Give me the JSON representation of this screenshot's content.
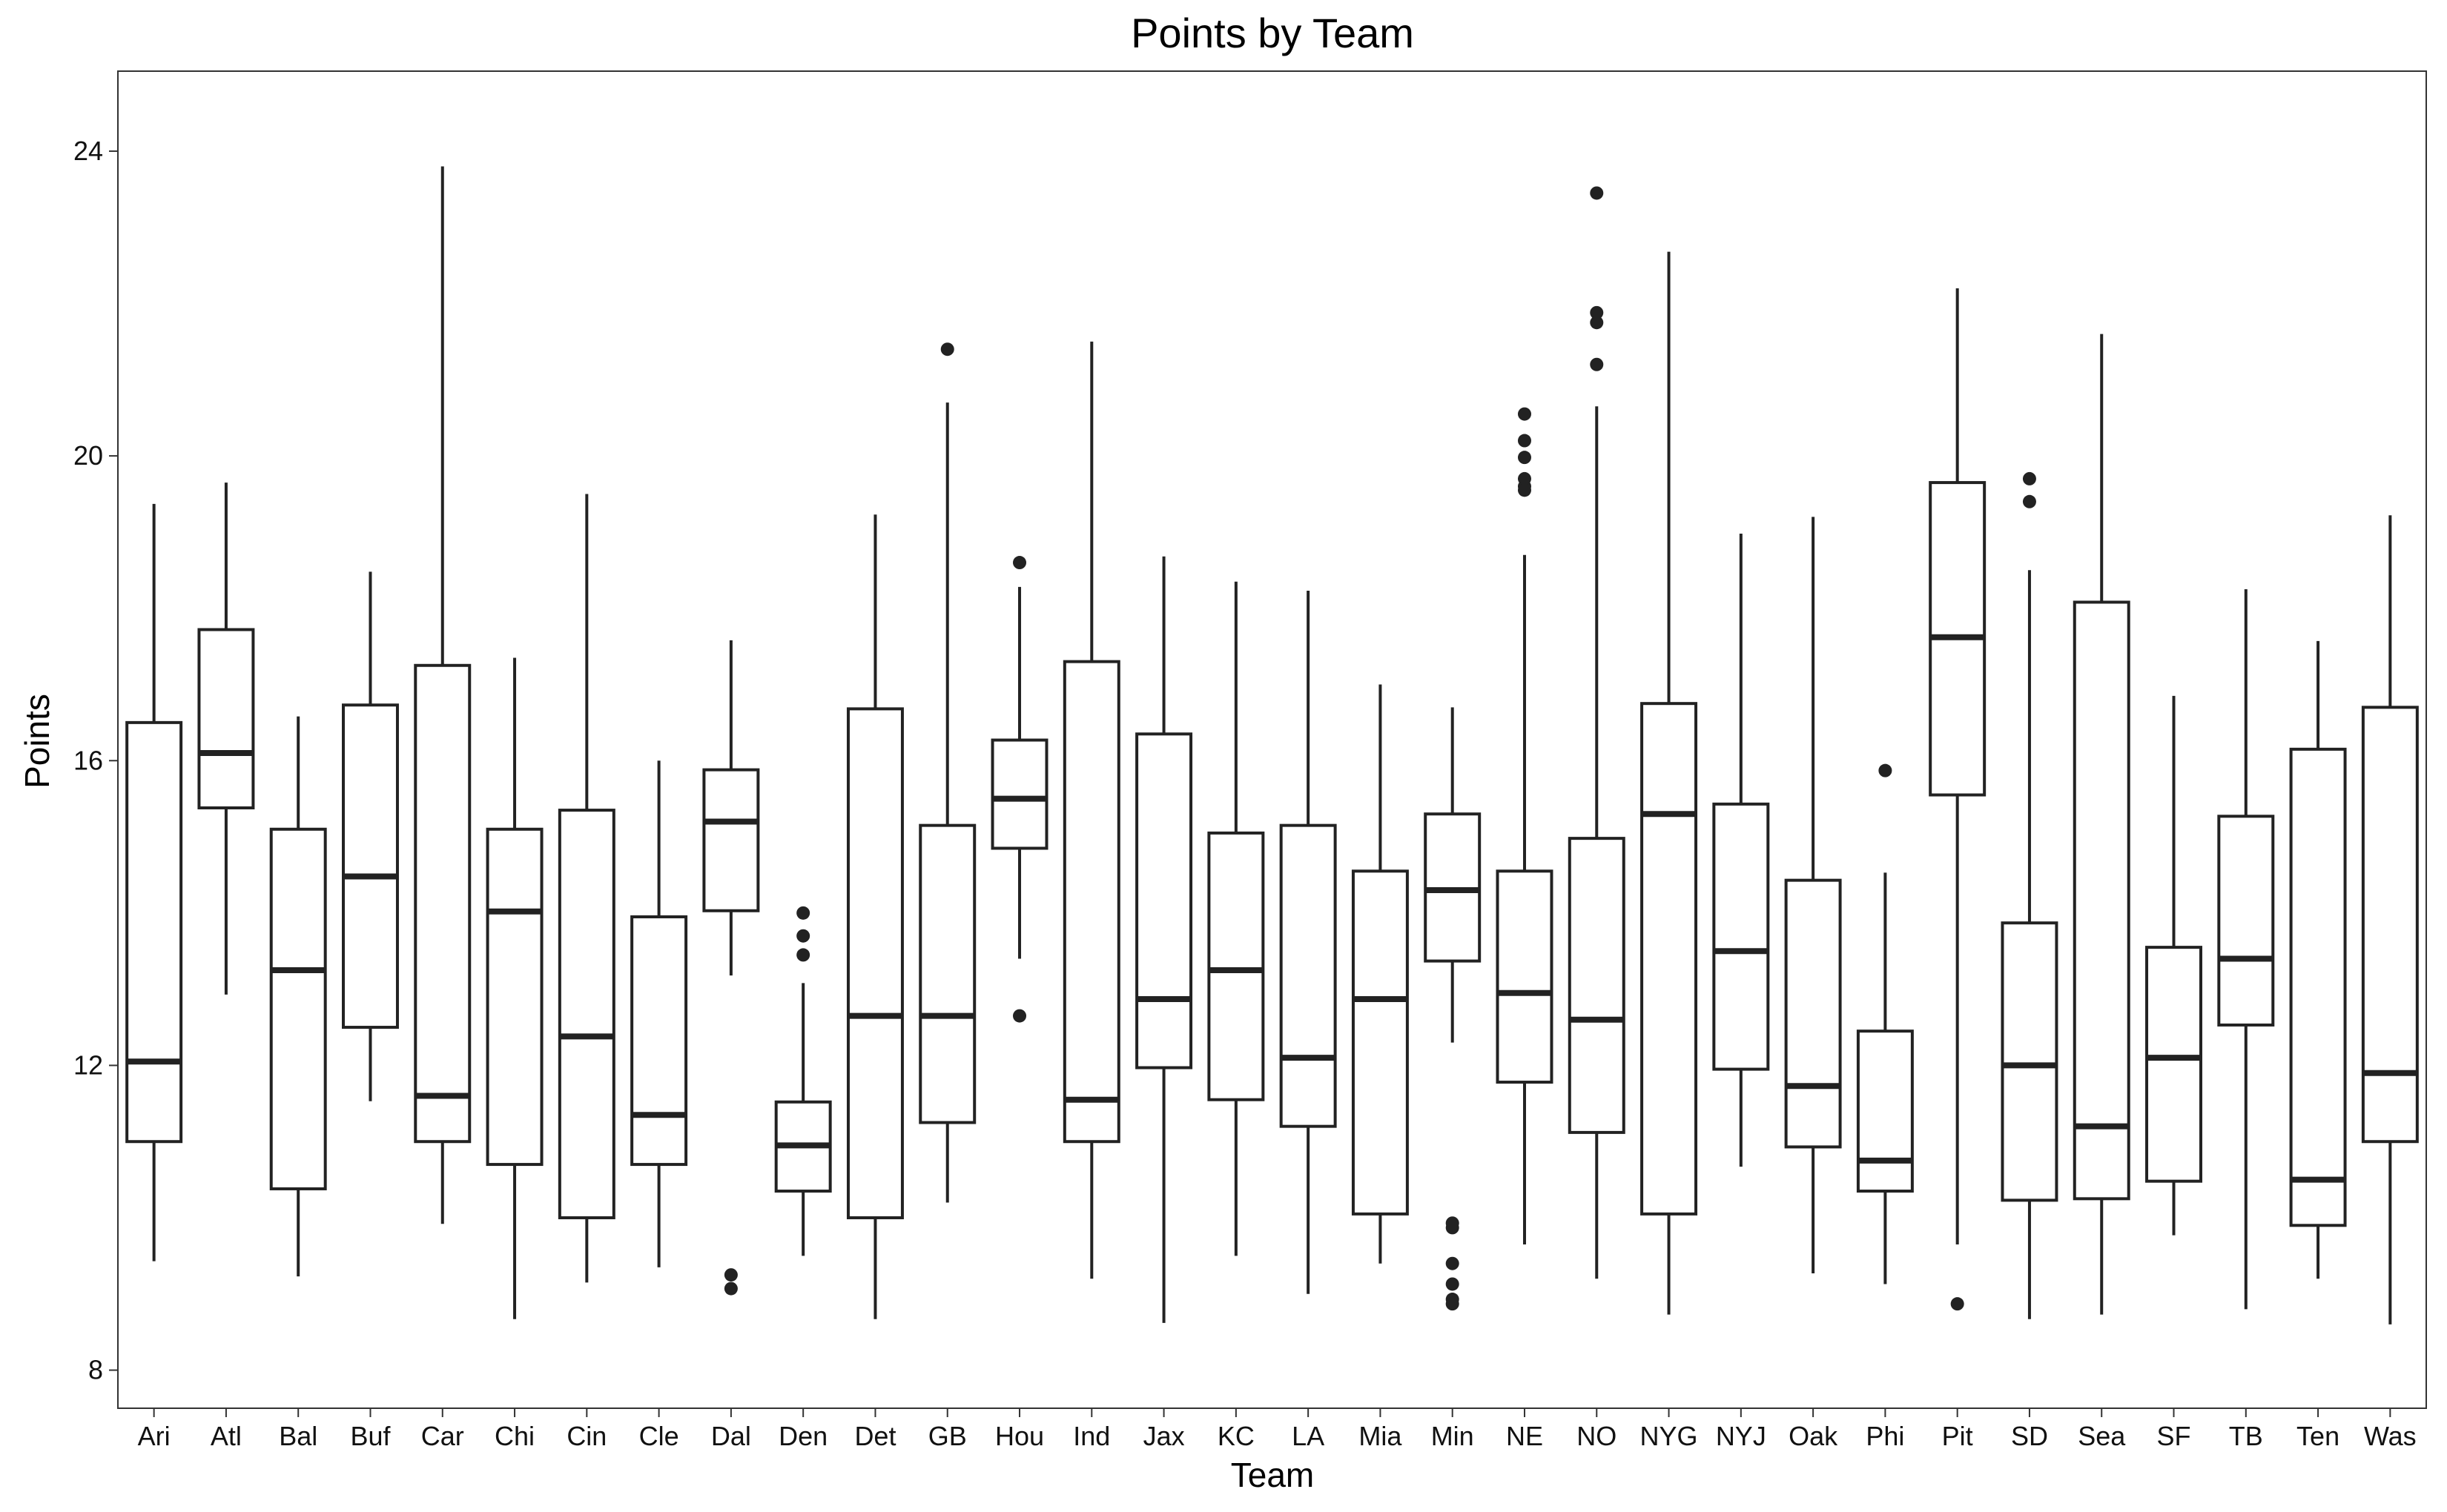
{
  "chart_data": {
    "type": "box",
    "title": "Points by Team",
    "xlabel": "Team",
    "ylabel": "Points",
    "ylim": [
      7.5,
      25.05
    ],
    "yticks": [
      8,
      12,
      16,
      20,
      24
    ],
    "grid": false,
    "categories": [
      "Ari",
      "Atl",
      "Bal",
      "Buf",
      "Car",
      "Chi",
      "Cin",
      "Cle",
      "Dal",
      "Den",
      "Det",
      "GB",
      "Hou",
      "Ind",
      "Jax",
      "KC",
      "LA",
      "Mia",
      "Min",
      "NE",
      "NO",
      "NYG",
      "NYJ",
      "Oak",
      "Phi",
      "Pit",
      "SD",
      "Sea",
      "SF",
      "TB",
      "Ten",
      "Was"
    ],
    "boxes": [
      {
        "min": 9.43,
        "q1": 11.0,
        "median": 12.05,
        "q3": 16.5,
        "max": 19.37,
        "outliers": []
      },
      {
        "min": 12.93,
        "q1": 15.38,
        "median": 16.1,
        "q3": 17.72,
        "max": 19.65,
        "outliers": []
      },
      {
        "min": 9.23,
        "q1": 10.38,
        "median": 13.25,
        "q3": 15.1,
        "max": 16.58,
        "outliers": []
      },
      {
        "min": 11.53,
        "q1": 12.5,
        "median": 14.48,
        "q3": 16.73,
        "max": 18.48,
        "outliers": []
      },
      {
        "min": 9.92,
        "q1": 11.0,
        "median": 11.6,
        "q3": 17.25,
        "max": 23.8,
        "outliers": []
      },
      {
        "min": 8.67,
        "q1": 10.7,
        "median": 14.02,
        "q3": 15.1,
        "max": 17.35,
        "outliers": []
      },
      {
        "min": 9.15,
        "q1": 10.0,
        "median": 12.38,
        "q3": 15.35,
        "max": 19.5,
        "outliers": []
      },
      {
        "min": 9.35,
        "q1": 10.7,
        "median": 11.35,
        "q3": 13.95,
        "max": 16.0,
        "outliers": []
      },
      {
        "min": 13.18,
        "q1": 14.03,
        "median": 15.2,
        "q3": 15.88,
        "max": 17.58,
        "outliers": [
          9.25,
          9.07
        ]
      },
      {
        "min": 9.5,
        "q1": 10.35,
        "median": 10.95,
        "q3": 11.52,
        "max": 13.08,
        "outliers": [
          14.0,
          13.7,
          13.45
        ]
      },
      {
        "min": 8.67,
        "q1": 10.0,
        "median": 12.65,
        "q3": 16.68,
        "max": 19.23,
        "outliers": []
      },
      {
        "min": 10.2,
        "q1": 11.25,
        "median": 12.65,
        "q3": 15.15,
        "max": 20.7,
        "outliers": [
          21.4
        ]
      },
      {
        "min": 13.4,
        "q1": 14.85,
        "median": 15.5,
        "q3": 16.27,
        "max": 18.28,
        "outliers": [
          18.6,
          12.65
        ]
      },
      {
        "min": 9.2,
        "q1": 11.0,
        "median": 11.55,
        "q3": 17.3,
        "max": 21.5,
        "outliers": []
      },
      {
        "min": 8.62,
        "q1": 11.97,
        "median": 12.87,
        "q3": 16.35,
        "max": 18.68,
        "outliers": []
      },
      {
        "min": 9.5,
        "q1": 11.55,
        "median": 13.25,
        "q3": 15.05,
        "max": 18.35,
        "outliers": []
      },
      {
        "min": 9.0,
        "q1": 11.2,
        "median": 12.1,
        "q3": 15.15,
        "max": 18.23,
        "outliers": []
      },
      {
        "min": 9.4,
        "q1": 10.05,
        "median": 12.87,
        "q3": 14.55,
        "max": 17.0,
        "outliers": []
      },
      {
        "min": 12.3,
        "q1": 13.37,
        "median": 14.3,
        "q3": 15.3,
        "max": 16.7,
        "outliers": [
          9.93,
          9.87,
          9.4,
          9.13,
          8.93,
          8.87
        ]
      },
      {
        "min": 9.65,
        "q1": 11.78,
        "median": 12.95,
        "q3": 14.55,
        "max": 18.7,
        "outliers": [
          20.55,
          20.2,
          19.98,
          19.7,
          19.6,
          19.55
        ]
      },
      {
        "min": 9.2,
        "q1": 11.12,
        "median": 12.6,
        "q3": 14.98,
        "max": 20.65,
        "outliers": [
          23.45,
          21.88,
          21.75,
          21.2
        ]
      },
      {
        "min": 8.73,
        "q1": 10.05,
        "median": 15.3,
        "q3": 16.75,
        "max": 22.68,
        "outliers": []
      },
      {
        "min": 10.67,
        "q1": 11.95,
        "median": 13.5,
        "q3": 15.43,
        "max": 18.98,
        "outliers": []
      },
      {
        "min": 9.27,
        "q1": 10.93,
        "median": 11.73,
        "q3": 14.43,
        "max": 19.2,
        "outliers": []
      },
      {
        "min": 9.13,
        "q1": 10.35,
        "median": 10.75,
        "q3": 12.45,
        "max": 14.53,
        "outliers": [
          15.87
        ]
      },
      {
        "min": 9.65,
        "q1": 15.55,
        "median": 17.62,
        "q3": 19.65,
        "max": 22.2,
        "outliers": [
          8.87
        ]
      },
      {
        "min": 8.67,
        "q1": 10.23,
        "median": 12.0,
        "q3": 13.87,
        "max": 18.5,
        "outliers": [
          19.7,
          19.4
        ]
      },
      {
        "min": 8.73,
        "q1": 10.25,
        "median": 11.2,
        "q3": 18.08,
        "max": 21.6,
        "outliers": []
      },
      {
        "min": 9.77,
        "q1": 10.48,
        "median": 12.1,
        "q3": 13.55,
        "max": 16.85,
        "outliers": []
      },
      {
        "min": 8.8,
        "q1": 12.53,
        "median": 13.4,
        "q3": 15.27,
        "max": 18.25,
        "outliers": []
      },
      {
        "min": 9.2,
        "q1": 9.9,
        "median": 10.5,
        "q3": 16.15,
        "max": 17.57,
        "outliers": []
      },
      {
        "min": 8.6,
        "q1": 11.0,
        "median": 11.9,
        "q3": 16.7,
        "max": 19.22,
        "outliers": []
      }
    ]
  }
}
